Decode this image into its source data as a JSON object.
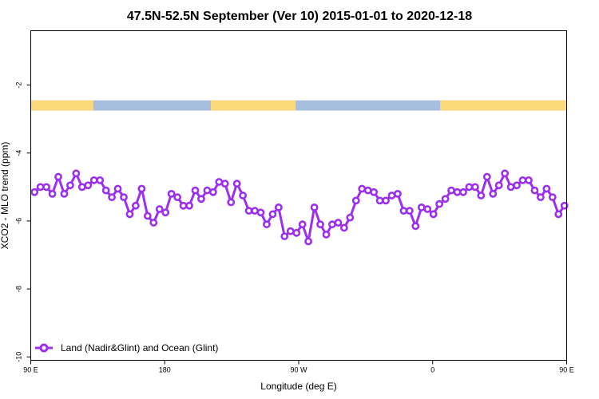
{
  "chart_data": {
    "type": "line",
    "title": "47.5N-52.5N September (Ver 10)   2015-01-01 to 2020-12-18",
    "xlabel": "Longitude (deg E)",
    "ylabel": "XCO2 - MLO trend (ppm)",
    "xlim": [
      90,
      450
    ],
    "ylim": [
      -10.1,
      -0.4
    ],
    "x_ticks": [
      {
        "value": 90,
        "label": "90 E"
      },
      {
        "value": 180,
        "label": "180"
      },
      {
        "value": 270,
        "label": "90 W"
      },
      {
        "value": 360,
        "label": "0"
      },
      {
        "value": 450,
        "label": "90 E"
      },
      {
        "value": 540,
        "label": "180"
      }
    ],
    "y_ticks": [
      {
        "value": -2,
        "label": "-2"
      },
      {
        "value": -4,
        "label": "-4"
      },
      {
        "value": -6,
        "label": "-6"
      },
      {
        "value": -8,
        "label": "-8"
      },
      {
        "value": -10,
        "label": "-10"
      }
    ],
    "grid": false,
    "legend_position": "bottom-left",
    "land_ocean_strip": {
      "y_range": [
        -2.75,
        -2.45
      ],
      "land_color": "#fcd97a",
      "ocean_color": "#a7bedf",
      "land_segments": [
        [
          90,
          132
        ],
        [
          211,
          268
        ],
        [
          365,
          452
        ]
      ]
    },
    "series": [
      {
        "name": "Land (Nadir&Glint) and Ocean (Glint)",
        "color": "#9b30f0",
        "x": [
          92.5,
          96.5,
          100.5,
          104.5,
          108.5,
          112.5,
          116.5,
          120.5,
          124.5,
          128.5,
          132.5,
          136.5,
          140.5,
          144.5,
          148.5,
          152.5,
          156.5,
          160.5,
          164.5,
          168.5,
          172.5,
          176.5,
          180.5,
          184.5,
          188.5,
          192.5,
          196.5,
          200.5,
          204.5,
          208.5,
          212.5,
          216.5,
          220.5,
          224.5,
          228.5,
          232.5,
          236.5,
          240.5,
          244.5,
          248.5,
          252.5,
          256.5,
          260.5,
          264.5,
          268.5,
          272.5,
          276.5,
          280.5,
          284.5,
          288.5,
          292.5,
          296.5,
          300.5,
          304.5,
          308.5,
          312.5,
          316.5,
          320.5,
          324.5,
          328.5,
          332.5,
          336.5,
          340.5,
          344.5,
          348.5,
          352.5,
          356.5,
          360.5,
          364.5,
          368.5,
          372.5,
          376.5,
          380.5,
          384.5,
          388.5,
          392.5,
          396.5,
          400.5,
          404.5,
          408.5,
          412.5,
          416.5,
          420.5,
          424.5,
          428.5,
          432.5,
          436.5,
          440.5,
          444.5,
          448.5
        ],
        "y": [
          -5.15,
          -5.0,
          -5.0,
          -5.2,
          -4.7,
          -5.2,
          -4.95,
          -4.6,
          -5.0,
          -4.95,
          -4.8,
          -4.8,
          -5.1,
          -5.3,
          -5.05,
          -5.3,
          -5.8,
          -5.55,
          -5.05,
          -5.85,
          -6.05,
          -5.65,
          -5.75,
          -5.2,
          -5.3,
          -5.55,
          -5.55,
          -5.1,
          -5.35,
          -5.1,
          -5.15,
          -4.85,
          -4.9,
          -5.45,
          -4.9,
          -5.25,
          -5.7,
          -5.7,
          -5.75,
          -6.1,
          -5.8,
          -5.6,
          -6.45,
          -6.3,
          -6.35,
          -6.1,
          -6.6,
          -5.6,
          -6.1,
          -6.4,
          -6.1,
          -6.05,
          -6.2,
          -5.9,
          -5.4,
          -5.05,
          -5.1,
          -5.15,
          -5.4,
          -5.4,
          -5.25,
          -5.2,
          -5.7,
          -5.7,
          -6.15,
          -5.6,
          -5.65,
          -5.8,
          -5.5,
          -5.35,
          -5.1,
          -5.15,
          -5.15,
          -5.0,
          -5.0,
          -5.25,
          -4.7,
          -5.2,
          -4.95,
          -4.6,
          -5.0,
          -4.95,
          -4.8,
          -4.8,
          -5.1,
          -5.3,
          -5.05,
          -5.3,
          -5.8,
          -5.55
        ]
      }
    ]
  }
}
